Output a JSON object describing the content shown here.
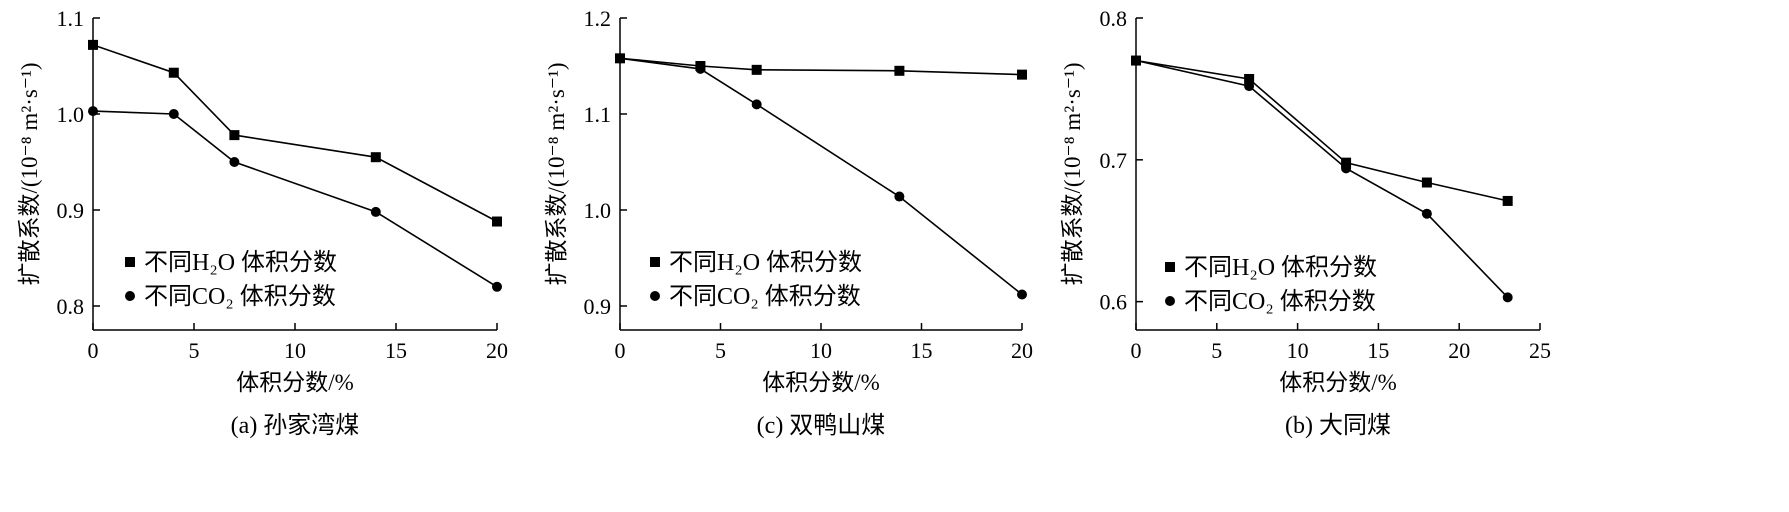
{
  "chart_data": [
    {
      "type": "line",
      "caption": "(a)  孙家湾煤",
      "xlabel": "体积分数/%",
      "ylabel": "扩散系数/(10⁻⁸ m²·s⁻¹)",
      "xlim": [
        0,
        20
      ],
      "ylim": [
        0.775,
        1.1
      ],
      "xticks": [
        0,
        5,
        10,
        15,
        20
      ],
      "yticks": [
        0.8,
        0.9,
        1.0,
        1.1
      ],
      "ytick_labels": [
        "0.8",
        "0.9",
        "1.0",
        "1.1"
      ],
      "legend_position": "center-left",
      "series": [
        {
          "name": "不同H₂O 体积分数",
          "marker": "square",
          "x": [
            0,
            4,
            7,
            14,
            20
          ],
          "y": [
            1.072,
            1.043,
            0.978,
            0.955,
            0.888
          ]
        },
        {
          "name": "不同CO₂ 体积分数",
          "marker": "circle",
          "x": [
            0,
            4,
            7,
            14,
            20
          ],
          "y": [
            1.003,
            1.0,
            0.95,
            0.898,
            0.82
          ]
        }
      ]
    },
    {
      "type": "line",
      "caption": "(c)  双鸭山煤",
      "xlabel": "体积分数/%",
      "ylabel": "扩散系数/(10⁻⁸ m²·s⁻¹)",
      "xlim": [
        0,
        20
      ],
      "ylim": [
        0.875,
        1.2
      ],
      "xticks": [
        0,
        5,
        10,
        15,
        20
      ],
      "yticks": [
        0.9,
        1.0,
        1.1,
        1.2
      ],
      "ytick_labels": [
        "0.9",
        "1.0",
        "1.1",
        "1.2"
      ],
      "legend_position": "center-left",
      "series": [
        {
          "name": "不同H₂O 体积分数",
          "marker": "square",
          "x": [
            0,
            4,
            6.8,
            13.9,
            20
          ],
          "y": [
            1.158,
            1.15,
            1.146,
            1.145,
            1.141
          ]
        },
        {
          "name": "不同CO₂ 体积分数",
          "marker": "circle",
          "x": [
            0,
            4,
            6.8,
            13.9,
            20
          ],
          "y": [
            1.158,
            1.147,
            1.11,
            1.014,
            0.912
          ]
        }
      ]
    },
    {
      "type": "line",
      "caption": "(b)  大同煤",
      "xlabel": "体积分数/%",
      "ylabel": "扩散系数/(10⁻⁸ m²·s⁻¹)",
      "xlim": [
        0,
        25
      ],
      "ylim": [
        0.58,
        0.8
      ],
      "xticks": [
        0,
        5,
        10,
        15,
        20,
        25
      ],
      "yticks": [
        0.6,
        0.7,
        0.8
      ],
      "ytick_labels": [
        "0.6",
        "0.7",
        "0.8"
      ],
      "legend_position": "lower-left",
      "series": [
        {
          "name": "不同H₂O 体积分数",
          "marker": "square",
          "x": [
            0,
            7,
            13,
            18,
            23
          ],
          "y": [
            0.77,
            0.757,
            0.698,
            0.684,
            0.671
          ]
        },
        {
          "name": "不同CO₂ 体积分数",
          "marker": "circle",
          "x": [
            0,
            7,
            13,
            18,
            23
          ],
          "y": [
            0.77,
            0.752,
            0.694,
            0.662,
            0.603
          ]
        }
      ]
    }
  ]
}
